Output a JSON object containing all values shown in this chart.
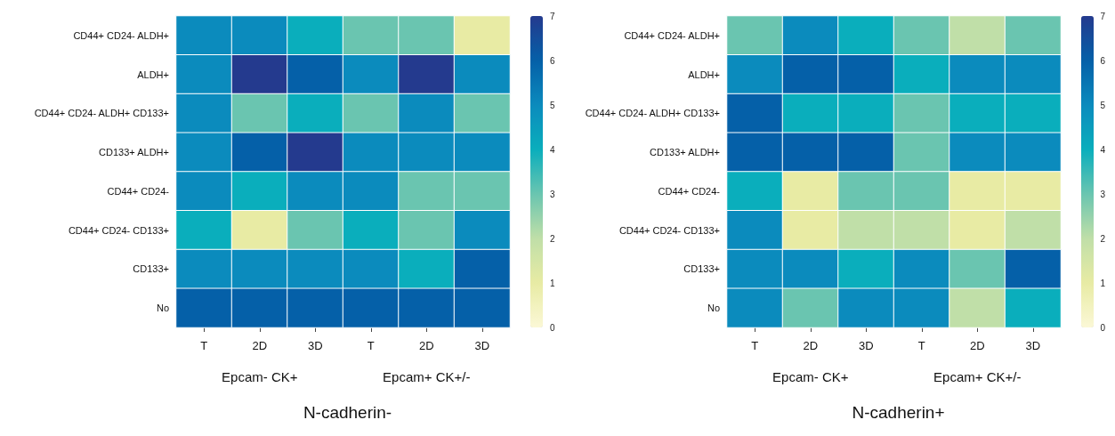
{
  "chart_data": [
    {
      "type": "heatmap",
      "title": "N-cadherin-",
      "categories": [
        "T",
        "2D",
        "3D",
        "T",
        "2D",
        "3D"
      ],
      "y_categories": [
        "CD44+ CD24- ALDH+",
        "ALDH+",
        "CD44+ CD24- ALDH+ CD133+",
        "CD133+ ALDH+",
        "CD44+ CD24-",
        "CD44+ CD24- CD133+",
        "CD133+",
        "No"
      ],
      "cells": [
        [
          5,
          5,
          4,
          3,
          3,
          1
        ],
        [
          5,
          7,
          6,
          5,
          7,
          5
        ],
        [
          5,
          3,
          4,
          3,
          5,
          3
        ],
        [
          5,
          6,
          7,
          5,
          5,
          5
        ],
        [
          5,
          4,
          5,
          5,
          3,
          3
        ],
        [
          4,
          1,
          3,
          4,
          3,
          5
        ],
        [
          5,
          5,
          5,
          5,
          4,
          6
        ],
        [
          6,
          6,
          6,
          6,
          6,
          6
        ]
      ],
      "clim": [
        0,
        7
      ],
      "cticks": [
        0,
        1,
        2,
        3,
        4,
        5,
        6,
        7
      ],
      "annotations": [
        "Epcam- CK+",
        "Epcam+ CK+/-"
      ]
    },
    {
      "type": "heatmap",
      "title": "N-cadherin+",
      "categories": [
        "T",
        "2D",
        "3D",
        "T",
        "2D",
        "3D"
      ],
      "y_categories": [
        "CD44+ CD24- ALDH+",
        "ALDH+",
        "CD44+ CD24- ALDH+ CD133+",
        "CD133+ ALDH+",
        "CD44+ CD24-",
        "CD44+ CD24- CD133+",
        "CD133+",
        "No"
      ],
      "cells": [
        [
          3,
          5,
          4,
          3,
          2,
          3
        ],
        [
          5,
          6,
          6,
          4,
          5,
          5
        ],
        [
          6,
          4,
          4,
          3,
          4,
          4
        ],
        [
          6,
          6,
          6,
          3,
          5,
          5
        ],
        [
          4,
          1,
          3,
          3,
          1,
          1
        ],
        [
          5,
          1,
          2,
          2,
          1,
          2
        ],
        [
          5,
          5,
          4,
          5,
          3,
          6
        ],
        [
          5,
          3,
          5,
          5,
          2,
          4
        ]
      ],
      "clim": [
        0,
        7
      ],
      "cticks": [
        0,
        1,
        2,
        3,
        4,
        5,
        6,
        7
      ],
      "annotations": [
        "Epcam- CK+",
        "Epcam+ CK+/-"
      ]
    }
  ]
}
